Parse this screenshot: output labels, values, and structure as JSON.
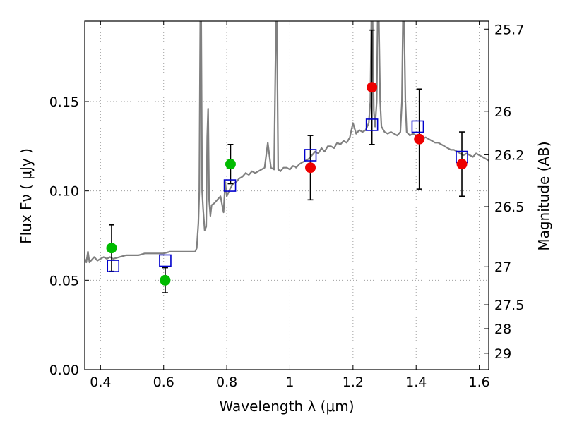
{
  "chart_data": {
    "type": "scatter",
    "xlabel": "Wavelength  λ (μm)",
    "ylabel": "Flux  Fν  ( μJy )",
    "ylabel_right": "Magnitude (AB)",
    "xlim": [
      0.35,
      1.63
    ],
    "ylim": [
      0.0,
      0.195
    ],
    "grid": true,
    "x_ticks": [
      {
        "value": 0.4,
        "label": "0.4"
      },
      {
        "value": 0.6,
        "label": "0.6"
      },
      {
        "value": 0.8,
        "label": "0.8"
      },
      {
        "value": 1.0,
        "label": "1"
      },
      {
        "value": 1.2,
        "label": "1.2"
      },
      {
        "value": 1.4,
        "label": "1.4"
      },
      {
        "value": 1.6,
        "label": "1.6"
      }
    ],
    "y_ticks": [
      {
        "value": 0.0,
        "label": "0.00"
      },
      {
        "value": 0.05,
        "label": "0.05"
      },
      {
        "value": 0.1,
        "label": "0.10"
      },
      {
        "value": 0.15,
        "label": "0.15"
      }
    ],
    "magnitude_ticks": [
      {
        "value": 25.7,
        "label": "25.7"
      },
      {
        "value": 26.0,
        "label": "26"
      },
      {
        "value": 26.2,
        "label": "26.2"
      },
      {
        "value": 26.5,
        "label": "26.5"
      },
      {
        "value": 27.0,
        "label": "27"
      },
      {
        "value": 27.5,
        "label": "27.5"
      },
      {
        "value": 28.0,
        "label": "28"
      },
      {
        "value": 29.0,
        "label": "29"
      }
    ],
    "colors": {
      "spectrum": "#808080",
      "observed_optical": "#00bb00",
      "observed_nir": "#ee0000",
      "model": "#0000cc",
      "grid": "#a0a0a0"
    },
    "series": [
      {
        "kind": "line",
        "points": [
          [
            0.35,
            0.062
          ],
          [
            0.355,
            0.06
          ],
          [
            0.36,
            0.066
          ],
          [
            0.365,
            0.06
          ],
          [
            0.37,
            0.061
          ],
          [
            0.38,
            0.063
          ],
          [
            0.39,
            0.061
          ],
          [
            0.4,
            0.062
          ],
          [
            0.41,
            0.063
          ],
          [
            0.42,
            0.062
          ],
          [
            0.43,
            0.063
          ],
          [
            0.44,
            0.062
          ],
          [
            0.46,
            0.063
          ],
          [
            0.48,
            0.064
          ],
          [
            0.5,
            0.064
          ],
          [
            0.52,
            0.064
          ],
          [
            0.54,
            0.065
          ],
          [
            0.56,
            0.065
          ],
          [
            0.58,
            0.065
          ],
          [
            0.6,
            0.065
          ],
          [
            0.62,
            0.066
          ],
          [
            0.64,
            0.066
          ],
          [
            0.66,
            0.066
          ],
          [
            0.68,
            0.066
          ],
          [
            0.7,
            0.066
          ],
          [
            0.705,
            0.068
          ],
          [
            0.71,
            0.082
          ],
          [
            0.713,
            0.1
          ],
          [
            0.716,
            0.195
          ],
          [
            0.719,
            0.195
          ],
          [
            0.722,
            0.1
          ],
          [
            0.725,
            0.09
          ],
          [
            0.73,
            0.078
          ],
          [
            0.735,
            0.08
          ],
          [
            0.738,
            0.13
          ],
          [
            0.741,
            0.146
          ],
          [
            0.744,
            0.095
          ],
          [
            0.748,
            0.086
          ],
          [
            0.752,
            0.092
          ],
          [
            0.76,
            0.093
          ],
          [
            0.77,
            0.095
          ],
          [
            0.78,
            0.097
          ],
          [
            0.79,
            0.088
          ],
          [
            0.795,
            0.105
          ],
          [
            0.8,
            0.097
          ],
          [
            0.81,
            0.101
          ],
          [
            0.82,
            0.104
          ],
          [
            0.83,
            0.105
          ],
          [
            0.84,
            0.107
          ],
          [
            0.85,
            0.108
          ],
          [
            0.86,
            0.11
          ],
          [
            0.87,
            0.109
          ],
          [
            0.88,
            0.111
          ],
          [
            0.89,
            0.11
          ],
          [
            0.9,
            0.111
          ],
          [
            0.91,
            0.112
          ],
          [
            0.92,
            0.113
          ],
          [
            0.93,
            0.127
          ],
          [
            0.94,
            0.113
          ],
          [
            0.95,
            0.112
          ],
          [
            0.956,
            0.195
          ],
          [
            0.959,
            0.195
          ],
          [
            0.963,
            0.112
          ],
          [
            0.97,
            0.111
          ],
          [
            0.98,
            0.113
          ],
          [
            0.99,
            0.113
          ],
          [
            1.0,
            0.112
          ],
          [
            1.01,
            0.114
          ],
          [
            1.02,
            0.113
          ],
          [
            1.03,
            0.115
          ],
          [
            1.04,
            0.116
          ],
          [
            1.05,
            0.117
          ],
          [
            1.06,
            0.118
          ],
          [
            1.07,
            0.12
          ],
          [
            1.08,
            0.122
          ],
          [
            1.09,
            0.121
          ],
          [
            1.1,
            0.124
          ],
          [
            1.11,
            0.122
          ],
          [
            1.12,
            0.125
          ],
          [
            1.13,
            0.125
          ],
          [
            1.14,
            0.124
          ],
          [
            1.15,
            0.127
          ],
          [
            1.16,
            0.126
          ],
          [
            1.17,
            0.128
          ],
          [
            1.18,
            0.127
          ],
          [
            1.19,
            0.13
          ],
          [
            1.2,
            0.138
          ],
          [
            1.21,
            0.132
          ],
          [
            1.22,
            0.134
          ],
          [
            1.23,
            0.133
          ],
          [
            1.24,
            0.134
          ],
          [
            1.25,
            0.138
          ],
          [
            1.255,
            0.15
          ],
          [
            1.258,
            0.195
          ],
          [
            1.262,
            0.195
          ],
          [
            1.266,
            0.145
          ],
          [
            1.27,
            0.136
          ],
          [
            1.275,
            0.15
          ],
          [
            1.278,
            0.195
          ],
          [
            1.282,
            0.195
          ],
          [
            1.286,
            0.15
          ],
          [
            1.29,
            0.136
          ],
          [
            1.3,
            0.133
          ],
          [
            1.31,
            0.132
          ],
          [
            1.32,
            0.133
          ],
          [
            1.33,
            0.132
          ],
          [
            1.34,
            0.131
          ],
          [
            1.35,
            0.133
          ],
          [
            1.355,
            0.15
          ],
          [
            1.358,
            0.195
          ],
          [
            1.362,
            0.195
          ],
          [
            1.366,
            0.15
          ],
          [
            1.37,
            0.133
          ],
          [
            1.38,
            0.131
          ],
          [
            1.39,
            0.132
          ],
          [
            1.4,
            0.131
          ],
          [
            1.41,
            0.13
          ],
          [
            1.42,
            0.129
          ],
          [
            1.43,
            0.13
          ],
          [
            1.44,
            0.129
          ],
          [
            1.45,
            0.128
          ],
          [
            1.46,
            0.127
          ],
          [
            1.47,
            0.127
          ],
          [
            1.48,
            0.126
          ],
          [
            1.49,
            0.125
          ],
          [
            1.5,
            0.124
          ],
          [
            1.51,
            0.123
          ],
          [
            1.52,
            0.123
          ],
          [
            1.53,
            0.122
          ],
          [
            1.54,
            0.121
          ],
          [
            1.55,
            0.12
          ],
          [
            1.56,
            0.121
          ],
          [
            1.57,
            0.12
          ],
          [
            1.58,
            0.119
          ],
          [
            1.59,
            0.121
          ],
          [
            1.6,
            0.12
          ],
          [
            1.61,
            0.119
          ],
          [
            1.62,
            0.118
          ],
          [
            1.63,
            0.117
          ]
        ]
      },
      {
        "kind": "points",
        "marker": "circle",
        "color": "#00bb00",
        "points": [
          {
            "x": 0.435,
            "y": 0.068,
            "err": 0.013
          },
          {
            "x": 0.605,
            "y": 0.05,
            "err": 0.007
          },
          {
            "x": 0.812,
            "y": 0.115,
            "err": 0.011
          }
        ]
      },
      {
        "kind": "points",
        "marker": "circle",
        "color": "#ee0000",
        "points": [
          {
            "x": 1.065,
            "y": 0.113,
            "err": 0.018
          },
          {
            "x": 1.26,
            "y": 0.158,
            "err": 0.032
          },
          {
            "x": 1.41,
            "y": 0.129,
            "err": 0.028
          },
          {
            "x": 1.545,
            "y": 0.115,
            "err": 0.018
          }
        ]
      },
      {
        "kind": "points",
        "marker": "square",
        "color": "#0000cc",
        "points": [
          {
            "x": 0.44,
            "y": 0.058
          },
          {
            "x": 0.605,
            "y": 0.061
          },
          {
            "x": 0.81,
            "y": 0.103
          },
          {
            "x": 1.065,
            "y": 0.12
          },
          {
            "x": 1.26,
            "y": 0.137
          },
          {
            "x": 1.405,
            "y": 0.136
          },
          {
            "x": 1.545,
            "y": 0.119
          }
        ]
      }
    ]
  }
}
